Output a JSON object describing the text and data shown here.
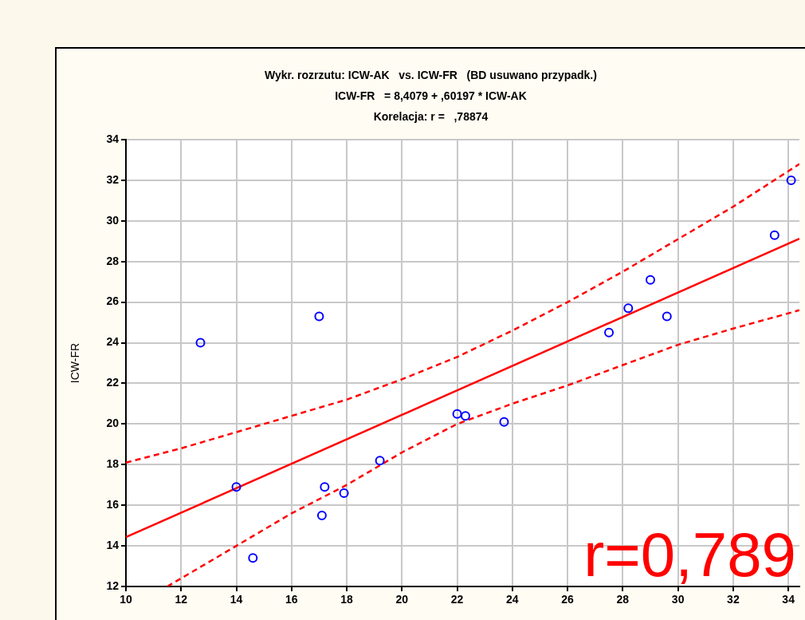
{
  "chart_data": {
    "type": "scatter",
    "title": "Wykr. rozrzutu: ICW-AK   vs. ICW-FR   (BD usuwano przypadk.)",
    "subtitle": "ICW-FR   = 8,4079 + ,60197 * ICW-AK\nKorelacja: r =   ,78874",
    "ylabel": "ICW-FR",
    "annotations": [
      "r=0,789"
    ],
    "xlim": [
      10,
      34.4
    ],
    "xticks": [
      10,
      12,
      14,
      16,
      18,
      20,
      22,
      24,
      26,
      28,
      30,
      32,
      34
    ],
    "ylim": [
      12,
      34
    ],
    "yticks": [
      12,
      14,
      16,
      18,
      20,
      22,
      24,
      26,
      28,
      30,
      32,
      34
    ],
    "grid": true,
    "legend": false,
    "series": [
      {
        "type": "scatter",
        "color": "#0000ff",
        "marker": "circle",
        "x": [
          12.7,
          17.0,
          14.0,
          14.6,
          17.2,
          17.1,
          17.9,
          19.2,
          22.0,
          22.3,
          23.7,
          27.5,
          28.2,
          29.0,
          29.6,
          33.5,
          34.1
        ],
        "values": [
          24.0,
          25.3,
          16.9,
          13.4,
          16.9,
          15.5,
          16.6,
          18.2,
          20.5,
          20.4,
          20.1,
          24.5,
          25.7,
          27.1,
          25.3,
          29.3,
          32.0
        ]
      },
      {
        "type": "line",
        "color": "#ff0000",
        "line_style": "solid",
        "marker": "none",
        "x": [
          10,
          34.4
        ],
        "values": [
          14.43,
          29.12
        ]
      },
      {
        "type": "line",
        "color": "#ff0000",
        "line_style": "dashed",
        "marker": "none",
        "x": [
          10,
          12,
          14,
          16,
          18,
          20,
          22,
          24,
          26,
          28,
          30,
          32,
          34.4
        ],
        "values": [
          18.1,
          18.8,
          19.6,
          20.4,
          21.2,
          22.2,
          23.3,
          24.6,
          26.0,
          27.5,
          29.1,
          30.7,
          32.8
        ]
      },
      {
        "type": "line",
        "color": "#ff0000",
        "line_style": "dashed",
        "marker": "none",
        "x": [
          11.5,
          14,
          16,
          18,
          20,
          22,
          24,
          26,
          28,
          30,
          32,
          34.4
        ],
        "values": [
          12.0,
          14.0,
          15.6,
          17.0,
          18.6,
          20.0,
          21.0,
          21.9,
          22.9,
          23.9,
          24.7,
          25.6
        ]
      }
    ]
  }
}
